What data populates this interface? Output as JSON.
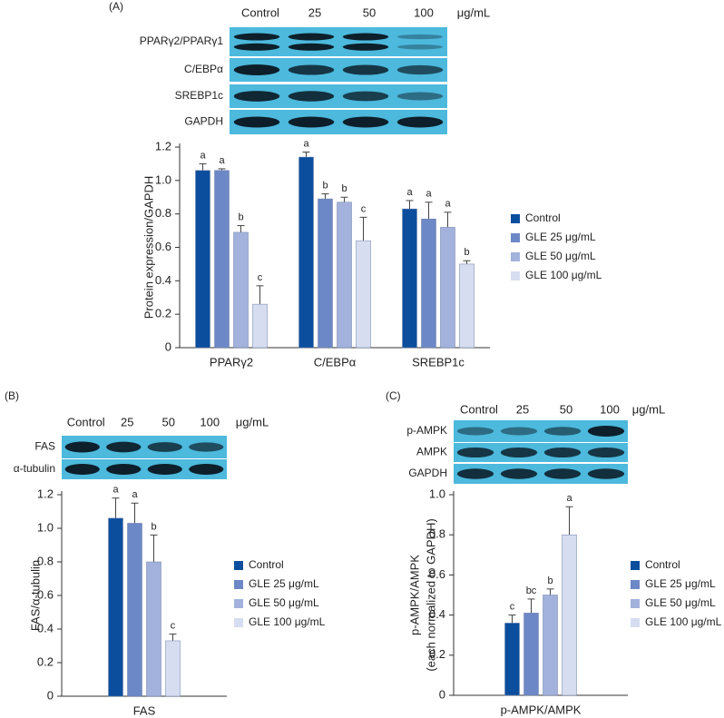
{
  "chart_data": [
    {
      "type": "bar",
      "panel_label": "(A)",
      "blot": {
        "lanes": [
          "Control",
          25,
          50,
          100
        ],
        "unit": "μg/mL",
        "rows": [
          "PPARγ2/PPARγ1",
          "C/EBPα",
          "SREBP1c",
          "GAPDH"
        ]
      },
      "ylabel": [
        "Protein expression/GAPDH"
      ],
      "categories": [
        "PPARγ2",
        "C/EBPα",
        "SREBP1c"
      ],
      "series": [
        {
          "name": "Control",
          "color": "#0b4e9e",
          "values": [
            1.06,
            1.14,
            0.83
          ],
          "errors": [
            0.04,
            0.03,
            0.05
          ],
          "significance": [
            "a",
            "a",
            "a"
          ]
        },
        {
          "name": "GLE 25 μg/mL",
          "color": "#6d88c6",
          "values": [
            1.06,
            0.89,
            0.77
          ],
          "errors": [
            0.01,
            0.03,
            0.1
          ],
          "significance": [
            "a",
            "b",
            "a"
          ]
        },
        {
          "name": "GLE 50 μg/mL",
          "color": "#a3b2dc",
          "values": [
            0.69,
            0.87,
            0.72
          ],
          "errors": [
            0.04,
            0.03,
            0.09
          ],
          "significance": [
            "b",
            "b",
            "a"
          ]
        },
        {
          "name": "GLE 100 μg/mL",
          "color": "#d6ddf1",
          "values": [
            0.26,
            0.64,
            0.5
          ],
          "errors": [
            0.11,
            0.14,
            0.02
          ],
          "significance": [
            "c",
            "c",
            "b"
          ]
        }
      ],
      "ylim": [
        0,
        1.2
      ],
      "yticks": [
        0,
        0.2,
        0.4,
        0.6,
        0.8,
        {
          "value": 1,
          "label": "1.0"
        },
        1.2
      ],
      "grid": false,
      "legend": "right"
    },
    {
      "type": "bar",
      "panel_label": "(B)",
      "blot": {
        "lanes": [
          "Control",
          25,
          50,
          100
        ],
        "unit": "μg/mL",
        "rows": [
          "FAS",
          "α-tubulin"
        ]
      },
      "ylabel": [
        "FAS/α-tubulin"
      ],
      "categories": [
        "FAS"
      ],
      "series": [
        {
          "name": "Control",
          "color": "#0b4e9e",
          "values": [
            1.06
          ],
          "errors": [
            0.12
          ],
          "significance": [
            "a"
          ]
        },
        {
          "name": "GLE 25 μg/mL",
          "color": "#6d88c6",
          "values": [
            1.03
          ],
          "errors": [
            0.12
          ],
          "significance": [
            "a"
          ]
        },
        {
          "name": "GLE 50 μg/mL",
          "color": "#a3b2dc",
          "values": [
            0.8
          ],
          "errors": [
            0.16
          ],
          "significance": [
            "b"
          ]
        },
        {
          "name": "GLE 100 μg/mL",
          "color": "#d6ddf1",
          "values": [
            0.33
          ],
          "errors": [
            0.04
          ],
          "significance": [
            "c"
          ]
        }
      ],
      "ylim": [
        0,
        1.2
      ],
      "yticks": [
        0,
        0.2,
        0.4,
        0.6,
        0.8,
        {
          "value": 1,
          "label": "1.0"
        },
        1.2
      ],
      "grid": false,
      "legend": "right"
    },
    {
      "type": "bar",
      "panel_label": "(C)",
      "blot": {
        "lanes": [
          "Control",
          25,
          50,
          100
        ],
        "unit": "μg/mL",
        "rows": [
          "p-AMPK",
          "AMPK",
          "GAPDH"
        ]
      },
      "ylabel": [
        "p-AMPK/AMPK",
        "(each normalized to GAPDH)"
      ],
      "categories": [
        "p-AMPK/AMPK"
      ],
      "series": [
        {
          "name": "Control",
          "color": "#0b4e9e",
          "values": [
            0.36
          ],
          "errors": [
            0.04
          ],
          "significance": [
            "c"
          ]
        },
        {
          "name": "GLE 25 μg/mL",
          "color": "#6d88c6",
          "values": [
            0.41
          ],
          "errors": [
            0.07
          ],
          "significance": [
            "bc"
          ]
        },
        {
          "name": "GLE 50 μg/mL",
          "color": "#a3b2dc",
          "values": [
            0.5
          ],
          "errors": [
            0.03
          ],
          "significance": [
            "b"
          ]
        },
        {
          "name": "GLE 100 μg/mL",
          "color": "#d6ddf1",
          "values": [
            0.8
          ],
          "errors": [
            0.14
          ],
          "significance": [
            "a"
          ]
        }
      ],
      "ylim": [
        0,
        1
      ],
      "yticks": [
        0,
        0.2,
        0.4,
        0.6,
        0.8,
        {
          "value": 1,
          "label": "1.0"
        }
      ],
      "grid": false,
      "legend": "right"
    }
  ]
}
